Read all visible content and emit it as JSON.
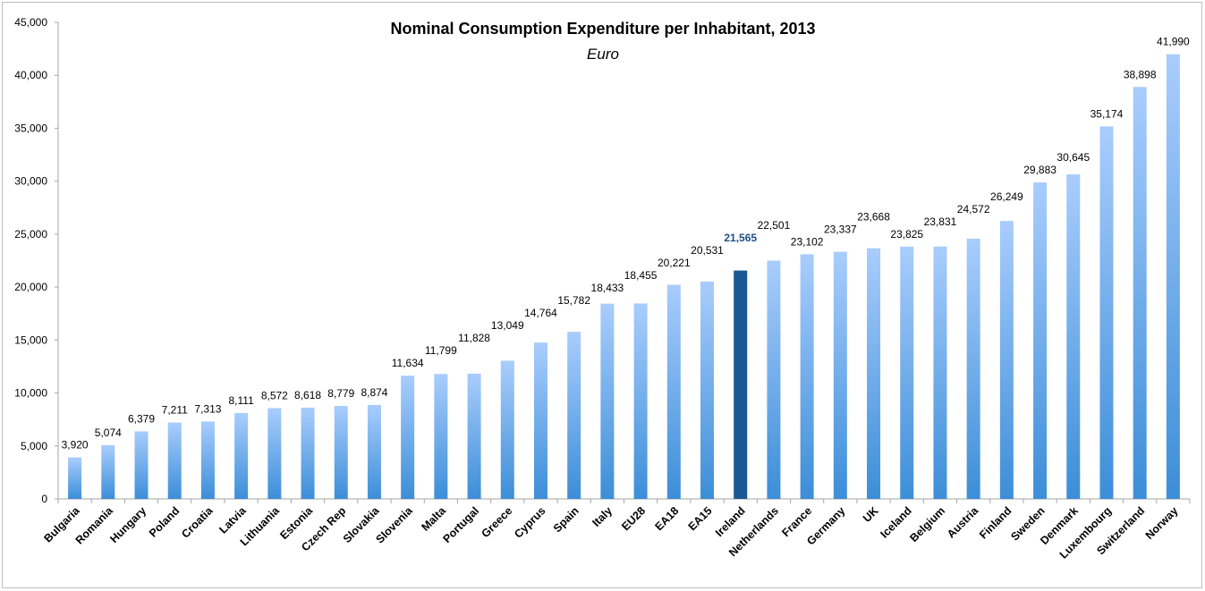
{
  "chart_data": {
    "type": "bar",
    "title": "Nominal Consumption Expenditure per Inhabitant, 2013",
    "subtitle": "Euro",
    "xlabel": "",
    "ylabel": "",
    "ylim": [
      0,
      45000
    ],
    "yticks": [
      0,
      5000,
      10000,
      15000,
      20000,
      25000,
      30000,
      35000,
      40000,
      45000
    ],
    "ytick_labels": [
      "0",
      "5,000",
      "10,000",
      "15,000",
      "20,000",
      "25,000",
      "30,000",
      "35,000",
      "40,000",
      "45,000"
    ],
    "grid": false,
    "legend": "none",
    "categories": [
      "Bulgaria",
      "Romania",
      "Hungary",
      "Poland",
      "Croatia",
      "Latvia",
      "Lithuania",
      "Estonia",
      "Czech Rep",
      "Slovakia",
      "Slovenia",
      "Malta",
      "Portugal",
      "Greece",
      "Cyprus",
      "Spain",
      "Italy",
      "EU28",
      "EA18",
      "EA15",
      "Ireland",
      "Netherlands",
      "France",
      "Germany",
      "UK",
      "Iceland",
      "Belgium",
      "Austria",
      "Finland",
      "Sweden",
      "Denmark",
      "Luxembourg",
      "Switzerland",
      "Norway"
    ],
    "values": [
      3920,
      5074,
      6379,
      7211,
      7313,
      8111,
      8572,
      8618,
      8779,
      8874,
      11634,
      11799,
      11828,
      13049,
      14764,
      15782,
      18433,
      18455,
      20221,
      20531,
      21565,
      22501,
      23102,
      23337,
      23668,
      23825,
      23831,
      24572,
      26249,
      29883,
      30645,
      35174,
      38898,
      41990
    ],
    "data_labels": [
      "3,920",
      "5,074",
      "6,379",
      "7,211",
      "7,313",
      "8,111",
      "8,572",
      "8,618",
      "8,779",
      "8,874",
      "11,634",
      "11,799",
      "11,828",
      "13,049",
      "14,764",
      "15,782",
      "18,433",
      "18,455",
      "20,221",
      "20,531",
      "21,565",
      "22,501",
      "23,102",
      "23,337",
      "23,668",
      "23,825",
      "23,831",
      "24,572",
      "26,249",
      "29,883",
      "30,645",
      "35,174",
      "38,898",
      "41,990"
    ],
    "highlight": "Ireland",
    "colors": {
      "bar_top": "#a9cdfd",
      "bar_bottom": "#3c8ed8",
      "highlight": "#1b5893",
      "highlight_label": "#1f4e85",
      "axis": "#a6a6a6"
    }
  }
}
